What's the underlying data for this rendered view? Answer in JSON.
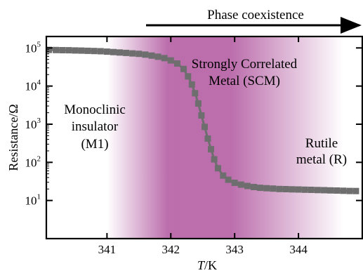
{
  "chart_data": {
    "type": "scatter",
    "xlabel_italic": "T",
    "xlabel_rest": "/K",
    "ylabel": "Resistance/Ω",
    "xlim": [
      340.05,
      345.0
    ],
    "ylim_log10": [
      0,
      5.3
    ],
    "y_scale": "log",
    "x_ticks": [
      341,
      342,
      343,
      344
    ],
    "x_tick_labels": [
      "341",
      "342",
      "343",
      "344"
    ],
    "y_ticks": [
      {
        "value": 10,
        "base": "10",
        "exp": "1"
      },
      {
        "value": 100,
        "base": "10",
        "exp": "2"
      },
      {
        "value": 1000,
        "base": "10",
        "exp": "3"
      },
      {
        "value": 10000,
        "base": "10",
        "exp": "4"
      },
      {
        "value": 100000,
        "base": "10",
        "exp": "5"
      }
    ],
    "grid": false,
    "series_color": "#6e6e6e",
    "shade_color": "#b0559e",
    "shade_range": [
      341.0,
      344.7
    ],
    "shade_core": [
      341.95,
      342.95
    ],
    "points": [
      {
        "x": 340.09,
        "y": 89000
      },
      {
        "x": 340.2,
        "y": 88000
      },
      {
        "x": 340.3,
        "y": 87500
      },
      {
        "x": 340.4,
        "y": 87000
      },
      {
        "x": 340.5,
        "y": 86000
      },
      {
        "x": 340.6,
        "y": 85000
      },
      {
        "x": 340.7,
        "y": 84000
      },
      {
        "x": 340.8,
        "y": 83000
      },
      {
        "x": 340.9,
        "y": 82000
      },
      {
        "x": 341.0,
        "y": 80000
      },
      {
        "x": 341.1,
        "y": 78000
      },
      {
        "x": 341.2,
        "y": 76000
      },
      {
        "x": 341.3,
        "y": 74000
      },
      {
        "x": 341.4,
        "y": 72000
      },
      {
        "x": 341.5,
        "y": 70000
      },
      {
        "x": 341.6,
        "y": 67000
      },
      {
        "x": 341.7,
        "y": 63000
      },
      {
        "x": 341.8,
        "y": 59000
      },
      {
        "x": 341.9,
        "y": 54000
      },
      {
        "x": 342.0,
        "y": 47000
      },
      {
        "x": 342.1,
        "y": 39000
      },
      {
        "x": 342.2,
        "y": 28000
      },
      {
        "x": 342.27,
        "y": 18000
      },
      {
        "x": 342.33,
        "y": 11000
      },
      {
        "x": 342.38,
        "y": 6500
      },
      {
        "x": 342.43,
        "y": 3500
      },
      {
        "x": 342.48,
        "y": 1700
      },
      {
        "x": 342.53,
        "y": 850
      },
      {
        "x": 342.58,
        "y": 420
      },
      {
        "x": 342.63,
        "y": 220
      },
      {
        "x": 342.68,
        "y": 120
      },
      {
        "x": 342.74,
        "y": 70
      },
      {
        "x": 342.82,
        "y": 45
      },
      {
        "x": 342.9,
        "y": 35
      },
      {
        "x": 343.0,
        "y": 29
      },
      {
        "x": 343.1,
        "y": 26
      },
      {
        "x": 343.2,
        "y": 24
      },
      {
        "x": 343.3,
        "y": 22.5
      },
      {
        "x": 343.4,
        "y": 21.5
      },
      {
        "x": 343.5,
        "y": 21
      },
      {
        "x": 343.6,
        "y": 20.5
      },
      {
        "x": 343.7,
        "y": 20
      },
      {
        "x": 343.8,
        "y": 19.8
      },
      {
        "x": 343.9,
        "y": 19.6
      },
      {
        "x": 344.0,
        "y": 19.4
      },
      {
        "x": 344.1,
        "y": 19.2
      },
      {
        "x": 344.2,
        "y": 19
      },
      {
        "x": 344.3,
        "y": 18.8
      },
      {
        "x": 344.4,
        "y": 18.6
      },
      {
        "x": 344.5,
        "y": 18.4
      },
      {
        "x": 344.6,
        "y": 18.2
      },
      {
        "x": 344.7,
        "y": 18
      },
      {
        "x": 344.8,
        "y": 17.8
      },
      {
        "x": 344.9,
        "y": 17.7
      }
    ],
    "annotations": {
      "phase_coexistence": "Phase coexistence",
      "m1_line1": "Monoclinic",
      "m1_line2": "insulator",
      "m1_line3": "(M1)",
      "scm_line1": "Strongly Correlated",
      "scm_line2": "Metal (SCM)",
      "r_line1": "Rutile",
      "r_line2": "metal (R)"
    }
  }
}
